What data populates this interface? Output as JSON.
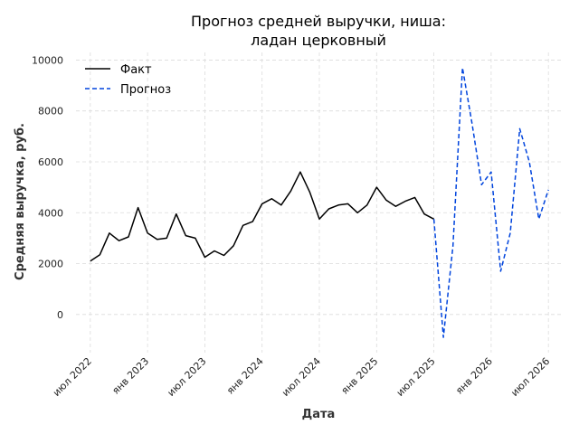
{
  "chart_data": {
    "type": "line",
    "title": [
      "Прогноз средней выручки, ниша:",
      "ладан церковный"
    ],
    "xlabel": "Дата",
    "ylabel": "Средняя выручка, руб.",
    "x_ticks": [
      "июл 2022",
      "янв 2023",
      "июл 2023",
      "янв 2024",
      "июл 2024",
      "янв 2025",
      "июл 2025",
      "янв 2026",
      "июл 2026"
    ],
    "y_ticks": [
      0,
      2000,
      4000,
      6000,
      8000,
      10000
    ],
    "ylim": [
      -1500,
      10300
    ],
    "xlim": [
      "2022-05",
      "2026-08"
    ],
    "grid": true,
    "legend_position": "top-left",
    "series": [
      {
        "name": "Факт",
        "color": "#000000",
        "style": "solid",
        "x": [
          "2022-07",
          "2022-08",
          "2022-09",
          "2022-10",
          "2022-11",
          "2022-12",
          "2023-01",
          "2023-02",
          "2023-03",
          "2023-04",
          "2023-05",
          "2023-06",
          "2023-07",
          "2023-08",
          "2023-09",
          "2023-10",
          "2023-11",
          "2023-12",
          "2024-01",
          "2024-02",
          "2024-03",
          "2024-04",
          "2024-05",
          "2024-06",
          "2024-07",
          "2024-08",
          "2024-09",
          "2024-10",
          "2024-11",
          "2024-12",
          "2025-01",
          "2025-02",
          "2025-03",
          "2025-04",
          "2025-05",
          "2025-06",
          "2025-07"
        ],
        "values": [
          2100,
          2350,
          3200,
          2900,
          3050,
          4200,
          3200,
          2950,
          3000,
          3950,
          3100,
          3000,
          2250,
          2500,
          2320,
          2700,
          3500,
          3650,
          4350,
          4550,
          4300,
          4850,
          5600,
          4800,
          3750,
          4150,
          4300,
          4350,
          4000,
          4300,
          5000,
          4500,
          4250,
          4450,
          4600,
          3950,
          3750
        ]
      },
      {
        "name": "Прогноз",
        "color": "#0044dd",
        "style": "dashed",
        "x": [
          "2025-07",
          "2025-08",
          "2025-09",
          "2025-10",
          "2025-11",
          "2025-12",
          "2026-01",
          "2026-02",
          "2026-03",
          "2026-04",
          "2026-05",
          "2026-06",
          "2026-07"
        ],
        "values": [
          3750,
          -900,
          2700,
          9700,
          7500,
          5100,
          5600,
          1700,
          3200,
          7300,
          6000,
          3750,
          4900
        ]
      }
    ]
  }
}
